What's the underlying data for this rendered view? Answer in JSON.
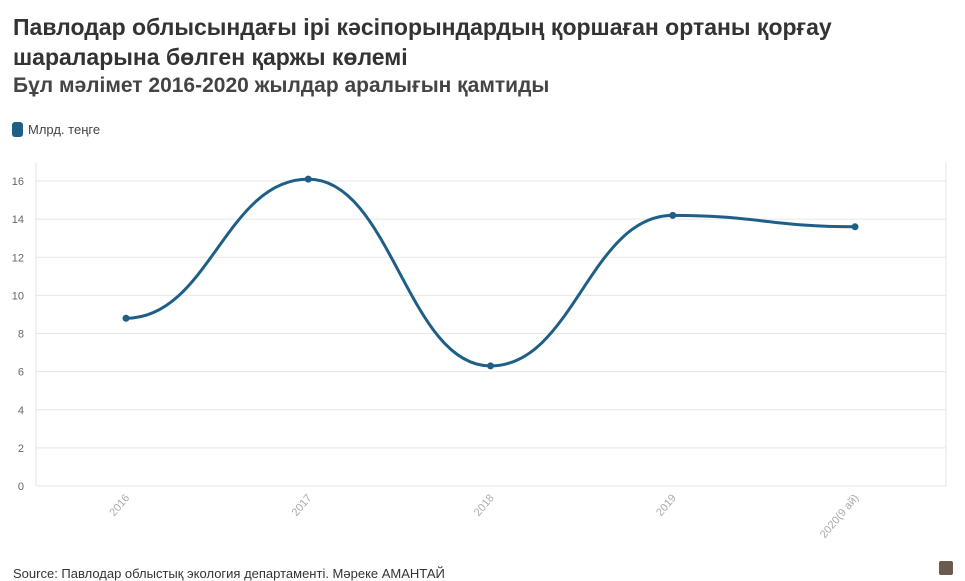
{
  "chart_data": {
    "type": "line",
    "title": "Павлодар облысындағы ірі кәсіпорындардың қоршаған ортаны қорғау шараларына бөлген қаржы көлемі",
    "subtitle": "Бұл мәлімет 2016-2020 жылдар аралығын қамтиды",
    "categories": [
      "2016",
      "2017",
      "2018",
      "2019",
      "2020(9 ай)"
    ],
    "series": [
      {
        "name": "Млрд. теңге",
        "values": [
          8.8,
          16.1,
          6.3,
          14.2,
          13.6
        ],
        "color": "#1f5f87"
      }
    ],
    "y_ticks": [
      0,
      2,
      4,
      6,
      8,
      10,
      12,
      14,
      16
    ],
    "ylim": [
      0,
      17
    ],
    "grid": true,
    "legend_position": "top-left",
    "xlabel": "",
    "ylabel": ""
  },
  "source": "Source: Павлодар облыстық экология департаменті. Мәреке АМАНТАЙ",
  "colors": {
    "grid": "#e6e6e6",
    "line": "#1f5f87",
    "axis_x_text": "#aaaaaa"
  }
}
